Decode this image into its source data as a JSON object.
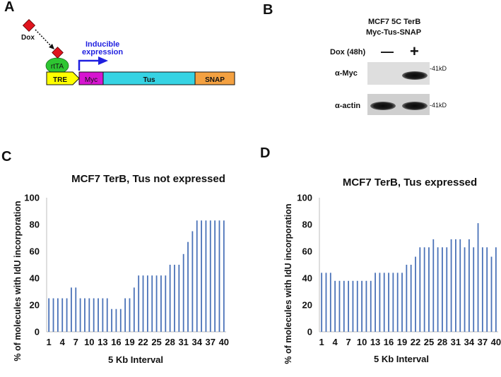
{
  "panels": {
    "a": "A",
    "b": "B",
    "c": "C",
    "d": "D"
  },
  "panel_a": {
    "dox_label": "Dox",
    "rtta_label": "rtTA",
    "inducible_line1": "Inducible",
    "inducible_line2": "expression",
    "segments": {
      "tre": "TRE",
      "myc": "Myc",
      "tus": "Tus",
      "snap": "SNAP"
    },
    "colors": {
      "dox": "#e0141e",
      "rtta": "#2ec632",
      "tre": "#ffff00",
      "myc": "#d615d0",
      "tus": "#36d3e3",
      "snap": "#f4a141",
      "arrow": "#1f1fe0"
    }
  },
  "panel_b": {
    "title_line1": "MCF7 5C TerB",
    "title_line2": "Myc-Tus-SNAP",
    "dox_treatment": "Dox (48h)",
    "minus": "—",
    "plus": "+",
    "row1_label": "α-Myc",
    "row2_label": "α-actin",
    "kd1": "-41kD",
    "kd2": "-41kD"
  },
  "chart_data": [
    {
      "type": "bar",
      "panel": "C",
      "title": "MCF7 TerB, Tus not expressed",
      "xlabel": "5 Kb Interval",
      "ylabel": "% of molecules with IdU incorporation",
      "ylim": [
        0,
        100
      ],
      "yticks": [
        "0",
        "20",
        "40",
        "60",
        "80",
        "100"
      ],
      "xtick_labels": [
        "1",
        "4",
        "7",
        "10",
        "13",
        "16",
        "19",
        "22",
        "25",
        "28",
        "31",
        "34",
        "37",
        "40"
      ],
      "xtick_positions": [
        1,
        4,
        7,
        10,
        13,
        16,
        19,
        22,
        25,
        28,
        31,
        34,
        37,
        40
      ],
      "categories": [
        1,
        2,
        3,
        4,
        5,
        6,
        7,
        8,
        9,
        10,
        11,
        12,
        13,
        14,
        15,
        16,
        17,
        18,
        19,
        20,
        21,
        22,
        23,
        24,
        25,
        26,
        27,
        28,
        29,
        30,
        31,
        32,
        33,
        34,
        35,
        36,
        37,
        38,
        39,
        40
      ],
      "values": [
        25,
        25,
        25,
        25,
        25,
        33,
        33,
        25,
        25,
        25,
        25,
        25,
        25,
        25,
        17,
        17,
        17,
        25,
        25,
        33,
        42,
        42,
        42,
        42,
        42,
        42,
        42,
        50,
        50,
        50,
        58,
        67,
        75,
        83,
        83,
        83,
        83,
        83,
        83,
        83
      ],
      "bar_color": "#4a72b8",
      "grid": false
    },
    {
      "type": "bar",
      "panel": "D",
      "title": "MCF7 TerB, Tus expressed",
      "xlabel": "5 Kb Interval",
      "ylabel": "% of molecules with IdU incorporation",
      "ylim": [
        0,
        100
      ],
      "yticks": [
        "0",
        "20",
        "40",
        "60",
        "80",
        "100"
      ],
      "xtick_labels": [
        "1",
        "4",
        "7",
        "10",
        "13",
        "16",
        "19",
        "22",
        "25",
        "28",
        "31",
        "34",
        "37",
        "40"
      ],
      "xtick_positions": [
        1,
        4,
        7,
        10,
        13,
        16,
        19,
        22,
        25,
        28,
        31,
        34,
        37,
        40
      ],
      "categories": [
        1,
        2,
        3,
        4,
        5,
        6,
        7,
        8,
        9,
        10,
        11,
        12,
        13,
        14,
        15,
        16,
        17,
        18,
        19,
        20,
        21,
        22,
        23,
        24,
        25,
        26,
        27,
        28,
        29,
        30,
        31,
        32,
        33,
        34,
        35,
        36,
        37,
        38,
        39,
        40
      ],
      "values": [
        44,
        44,
        44,
        38,
        38,
        38,
        38,
        38,
        38,
        38,
        38,
        38,
        44,
        44,
        44,
        44,
        44,
        44,
        44,
        50,
        50,
        56,
        63,
        63,
        63,
        69,
        63,
        63,
        63,
        69,
        69,
        69,
        63,
        69,
        63,
        81,
        63,
        63,
        56,
        63
      ],
      "bar_color": "#4a72b8",
      "grid": false
    }
  ]
}
